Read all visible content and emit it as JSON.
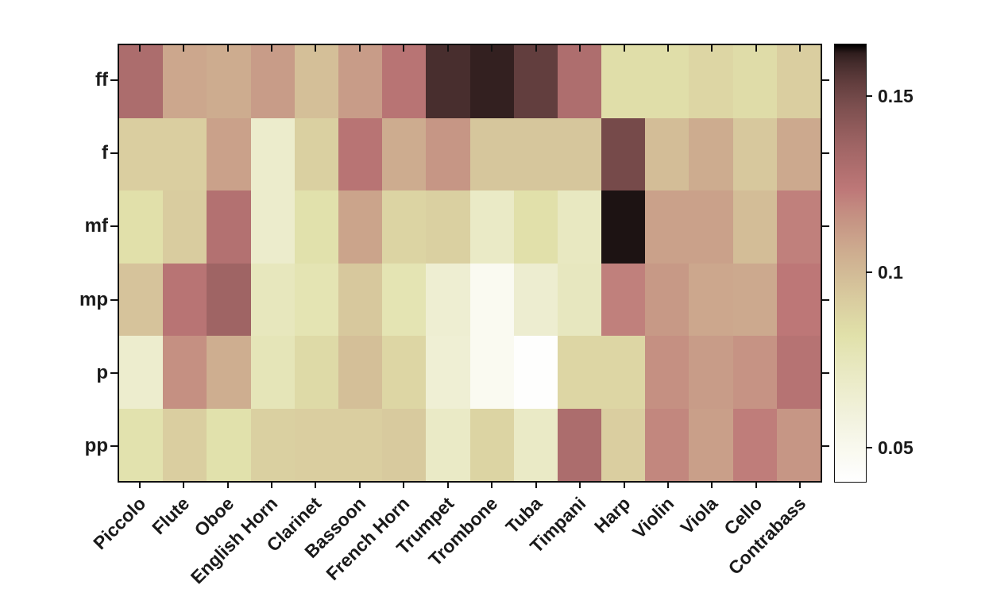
{
  "figure": {
    "background_color": "#ffffff",
    "axis_color": "#111111",
    "label_color": "#1a1a1a"
  },
  "chart_data": {
    "type": "heatmap",
    "title": "",
    "xlabel": "",
    "ylabel": "",
    "grid": false,
    "legend_position": "right-colorbar",
    "colormap": "pink_reversed",
    "vmin": 0.04,
    "vmax": 0.165,
    "x_categories": [
      "Piccolo",
      "Flute",
      "Oboe",
      "English Horn",
      "Clarinet",
      "Bassoon",
      "French Horn",
      "Trumpet",
      "Trombone",
      "Tuba",
      "Timpani",
      "Harp",
      "Violin",
      "Viola",
      "Cello",
      "Contrabass"
    ],
    "y_categories": [
      "ff",
      "f",
      "mf",
      "mp",
      "p",
      "pp"
    ],
    "values": [
      [
        0.131,
        0.108,
        0.106,
        0.112,
        0.098,
        0.112,
        0.126,
        0.159,
        0.162,
        0.154,
        0.13,
        0.083,
        0.083,
        0.087,
        0.084,
        0.091
      ],
      [
        0.091,
        0.091,
        0.11,
        0.067,
        0.09,
        0.126,
        0.106,
        0.114,
        0.095,
        0.095,
        0.095,
        0.149,
        0.099,
        0.106,
        0.094,
        0.107
      ],
      [
        0.082,
        0.092,
        0.128,
        0.067,
        0.081,
        0.109,
        0.088,
        0.09,
        0.07,
        0.082,
        0.072,
        0.164,
        0.11,
        0.11,
        0.099,
        0.121
      ],
      [
        0.096,
        0.126,
        0.136,
        0.074,
        0.078,
        0.094,
        0.078,
        0.064,
        0.048,
        0.065,
        0.073,
        0.121,
        0.113,
        0.108,
        0.107,
        0.124
      ],
      [
        0.066,
        0.116,
        0.105,
        0.076,
        0.085,
        0.098,
        0.087,
        0.063,
        0.048,
        0.041,
        0.087,
        0.087,
        0.116,
        0.112,
        0.115,
        0.127
      ],
      [
        0.08,
        0.091,
        0.081,
        0.09,
        0.091,
        0.091,
        0.093,
        0.07,
        0.088,
        0.07,
        0.131,
        0.091,
        0.119,
        0.111,
        0.122,
        0.114
      ]
    ],
    "colorbar_ticks": [
      0.05,
      0.1,
      0.15
    ],
    "colorbar_tick_labels": [
      "0.05",
      "0.1",
      "0.15"
    ]
  }
}
